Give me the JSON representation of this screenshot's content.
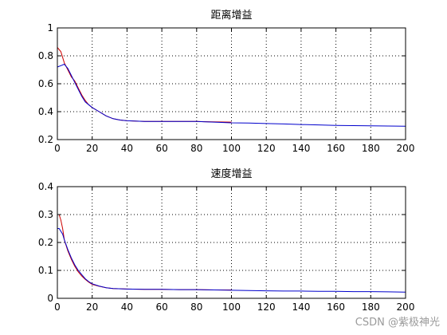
{
  "figure": {
    "watermark": "CSDN @紫极神光"
  },
  "chart_data": [
    {
      "type": "line",
      "title": "距离增益",
      "xlabel": "",
      "ylabel": "",
      "xlim": [
        0,
        200
      ],
      "ylim": [
        0.2,
        1
      ],
      "xticks": [
        0,
        20,
        40,
        60,
        80,
        100,
        120,
        140,
        160,
        180,
        200
      ],
      "yticks": [
        0.2,
        0.4,
        0.6,
        0.8,
        1
      ],
      "ytick_labels": [
        "0.2",
        "0.4",
        "0.6",
        "0.8",
        "1"
      ],
      "grid": "dotted",
      "series": [
        {
          "color": "#cc0000",
          "x": [
            0,
            2,
            4,
            6,
            8,
            10,
            12,
            14,
            16,
            18,
            20,
            24,
            28,
            32,
            36,
            40,
            50,
            60,
            70,
            80,
            90,
            100
          ],
          "y": [
            0.86,
            0.83,
            0.75,
            0.7,
            0.65,
            0.62,
            0.57,
            0.52,
            0.48,
            0.45,
            0.43,
            0.4,
            0.37,
            0.35,
            0.34,
            0.335,
            0.33,
            0.33,
            0.33,
            0.33,
            0.327,
            0.325
          ]
        },
        {
          "color": "#0000cc",
          "x": [
            0,
            2,
            4,
            6,
            8,
            10,
            12,
            14,
            16,
            18,
            20,
            24,
            28,
            32,
            36,
            40,
            50,
            60,
            70,
            80,
            90,
            100,
            110,
            120,
            130,
            140,
            150,
            160,
            170,
            180,
            190,
            200
          ],
          "y": [
            0.72,
            0.73,
            0.74,
            0.71,
            0.66,
            0.61,
            0.56,
            0.51,
            0.47,
            0.45,
            0.43,
            0.4,
            0.37,
            0.35,
            0.34,
            0.335,
            0.33,
            0.33,
            0.33,
            0.33,
            0.325,
            0.32,
            0.318,
            0.315,
            0.312,
            0.308,
            0.305,
            0.302,
            0.3,
            0.298,
            0.297,
            0.296
          ]
        }
      ]
    },
    {
      "type": "line",
      "title": "速度增益",
      "xlabel": "",
      "ylabel": "",
      "xlim": [
        0,
        200
      ],
      "ylim": [
        0,
        0.4
      ],
      "xticks": [
        0,
        20,
        40,
        60,
        80,
        100,
        120,
        140,
        160,
        180,
        200
      ],
      "yticks": [
        0,
        0.1,
        0.2,
        0.3,
        0.4
      ],
      "ytick_labels": [
        "0",
        "0.1",
        "0.2",
        "0.3",
        "0.4"
      ],
      "grid": "dotted",
      "series": [
        {
          "color": "#cc0000",
          "x": [
            0,
            1,
            2,
            3,
            4,
            6,
            8,
            10,
            12,
            14,
            16,
            18,
            20,
            24,
            28,
            32,
            40,
            50,
            60,
            70,
            80,
            90,
            100
          ],
          "y": [
            0.3,
            0.3,
            0.28,
            0.25,
            0.21,
            0.17,
            0.14,
            0.115,
            0.095,
            0.08,
            0.068,
            0.058,
            0.05,
            0.043,
            0.038,
            0.035,
            0.033,
            0.032,
            0.032,
            0.031,
            0.031,
            0.03,
            0.03
          ]
        },
        {
          "color": "#0000cc",
          "x": [
            0,
            1,
            2,
            3,
            4,
            6,
            8,
            10,
            12,
            14,
            16,
            18,
            20,
            24,
            28,
            32,
            40,
            50,
            60,
            70,
            80,
            90,
            100,
            110,
            120,
            130,
            140,
            150,
            160,
            170,
            180,
            190,
            200
          ],
          "y": [
            0.25,
            0.25,
            0.24,
            0.23,
            0.21,
            0.175,
            0.145,
            0.12,
            0.1,
            0.085,
            0.07,
            0.06,
            0.052,
            0.044,
            0.038,
            0.035,
            0.033,
            0.032,
            0.032,
            0.031,
            0.031,
            0.03,
            0.029,
            0.028,
            0.027,
            0.026,
            0.026,
            0.025,
            0.025,
            0.024,
            0.024,
            0.023,
            0.022
          ]
        }
      ]
    }
  ]
}
